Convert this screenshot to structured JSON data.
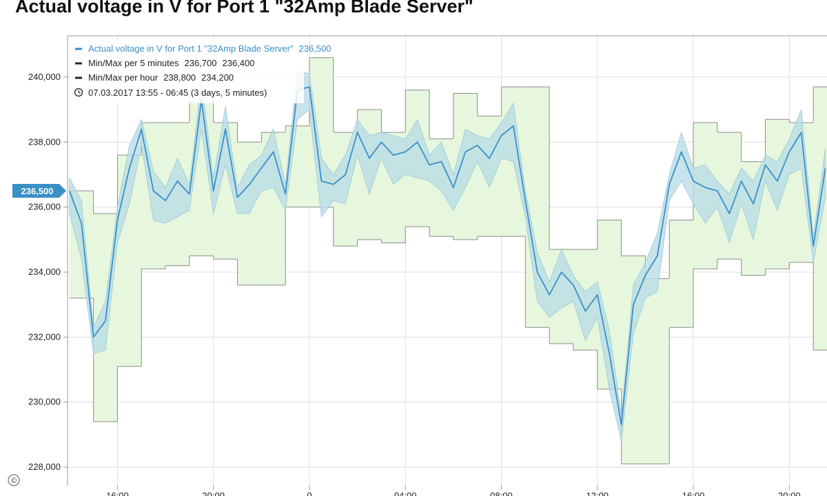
{
  "chart_data": {
    "type": "line",
    "title": "Actual voltage in V for Port 1 \"32Amp Blade Server\"",
    "time_range": "07.03.2017 13:55 - 06:45  (3 days, 5 minutes)",
    "x": [
      14,
      14.5,
      15,
      15.5,
      16,
      16.5,
      17,
      17.5,
      18,
      18.5,
      19,
      19.5,
      20,
      20.5,
      21,
      21.5,
      22,
      22.5,
      23,
      23.5,
      24,
      24.5,
      25,
      25.5,
      26,
      26.5,
      27,
      27.5,
      28,
      28.5,
      29,
      29.5,
      30,
      30.5,
      31,
      31.5,
      32,
      32.5,
      33,
      33.5,
      34,
      34.5,
      35,
      35.5,
      36,
      36.5,
      37,
      37.5,
      38,
      38.5,
      39,
      39.5,
      40,
      40.5,
      41,
      41.5,
      42,
      42.5,
      43,
      43.5,
      44,
      44.5,
      45,
      45.5
    ],
    "series": [
      {
        "name": "Actual voltage  in V for Port 1 \"32Amp Blade Server\"",
        "color": "#3a8fc6",
        "current": {
          "value": 236500,
          "label": "236,500"
        },
        "values": [
          236500,
          235500,
          232000,
          232500,
          235600,
          237200,
          238400,
          236500,
          236200,
          236800,
          236400,
          239300,
          236500,
          238400,
          236300,
          236700,
          237200,
          237700,
          236400,
          239600,
          239700,
          236800,
          236700,
          237000,
          238300,
          237500,
          238000,
          237600,
          237700,
          238000,
          237300,
          237400,
          236600,
          237700,
          237900,
          237500,
          238200,
          238500,
          236200,
          234000,
          233300,
          234000,
          233600,
          232800,
          233300,
          231500,
          229300,
          233000,
          233900,
          234500,
          236700,
          237700,
          236800,
          236600,
          236500,
          235800,
          236800,
          236100,
          237300,
          236800,
          237700,
          238300,
          234800,
          237200
        ]
      }
    ],
    "bands": [
      {
        "name": "Min/Max per 5 minutes",
        "color": "#b9dce6",
        "current": [
          {
            "value": 236700,
            "label": "236,700"
          },
          {
            "value": 236400,
            "label": "236,400"
          }
        ],
        "high": [
          236900,
          236200,
          232300,
          233100,
          236000,
          237900,
          238700,
          237100,
          236600,
          237500,
          236700,
          239900,
          236900,
          239100,
          236600,
          237300,
          237600,
          238400,
          236700,
          240200,
          240100,
          237500,
          237000,
          237600,
          238700,
          238200,
          238300,
          238200,
          238100,
          238700,
          237600,
          238000,
          237000,
          238400,
          238200,
          238100,
          238600,
          239200,
          236500,
          234600,
          233700,
          234700,
          233900,
          233400,
          233700,
          232200,
          229600,
          233600,
          234300,
          235200,
          237000,
          238300,
          237200,
          237300,
          236800,
          236400,
          237200,
          236800,
          237600,
          237400,
          238100,
          239000,
          235100,
          237800
        ],
        "low": [
          235800,
          234400,
          231500,
          231600,
          234900,
          236100,
          237900,
          235600,
          235500,
          235700,
          235900,
          238400,
          235800,
          237300,
          235800,
          235800,
          236500,
          236600,
          235900,
          238700,
          239000,
          235700,
          236200,
          236100,
          237600,
          236400,
          237500,
          236700,
          237000,
          236900,
          236800,
          236500,
          235900,
          236600,
          237400,
          236600,
          237500,
          237400,
          235700,
          233100,
          232600,
          232900,
          233100,
          231900,
          232600,
          230400,
          228800,
          232100,
          233200,
          233400,
          236200,
          236800,
          236100,
          235500,
          236000,
          234900,
          236100,
          235000,
          236800,
          235900,
          237000,
          237200,
          234300,
          236300
        ]
      },
      {
        "name": "Min/Max per hour",
        "color": "#e6f7dd",
        "edge_color": "#8c8c8c",
        "current": [
          {
            "value": 238800,
            "label": "238,800"
          },
          {
            "value": 234200,
            "label": "234,200"
          }
        ],
        "x": [
          14,
          15,
          16,
          17,
          18,
          19,
          20,
          21,
          22,
          23,
          24,
          25,
          26,
          27,
          28,
          29,
          30,
          31,
          32,
          33,
          34,
          35,
          36,
          37,
          38,
          39,
          40,
          41,
          42,
          43,
          44,
          45
        ],
        "high": [
          236500,
          235800,
          237600,
          238600,
          238600,
          239500,
          238600,
          238000,
          238300,
          238500,
          240600,
          238300,
          239000,
          238300,
          239600,
          238100,
          239500,
          238800,
          239700,
          239700,
          234700,
          234700,
          235600,
          234500,
          233800,
          235600,
          238600,
          238300,
          237400,
          238700,
          238600,
          239700
        ],
        "low": [
          233200,
          229400,
          231100,
          234100,
          234200,
          234500,
          234400,
          233600,
          233600,
          236000,
          236000,
          234800,
          235000,
          234900,
          235400,
          235100,
          235000,
          235100,
          235100,
          232300,
          231800,
          231600,
          230400,
          228100,
          228100,
          232300,
          234100,
          234400,
          233900,
          234100,
          234300,
          231600
        ]
      }
    ],
    "xlim": [
      13.92,
      45.57
    ],
    "xticks": [
      {
        "value": 16,
        "label": "16:00"
      },
      {
        "value": 20,
        "label": "20:00"
      },
      {
        "value": 24,
        "label": "0"
      },
      {
        "value": 28,
        "label": "04:00"
      },
      {
        "value": 32,
        "label": "08:00"
      },
      {
        "value": 36,
        "label": "12:00"
      },
      {
        "value": 40,
        "label": "16:00"
      },
      {
        "value": 44,
        "label": "20:00"
      }
    ],
    "ylim": [
      227430,
      241270
    ],
    "yticks": [
      {
        "value": 228000,
        "label": "228,000"
      },
      {
        "value": 230000,
        "label": "230,000"
      },
      {
        "value": 232000,
        "label": "232,000"
      },
      {
        "value": 234000,
        "label": "234,000"
      },
      {
        "value": 236000,
        "label": "236,000"
      },
      {
        "value": 238000,
        "label": "238,000"
      },
      {
        "value": 240000,
        "label": "240,000"
      }
    ],
    "grid": true
  }
}
